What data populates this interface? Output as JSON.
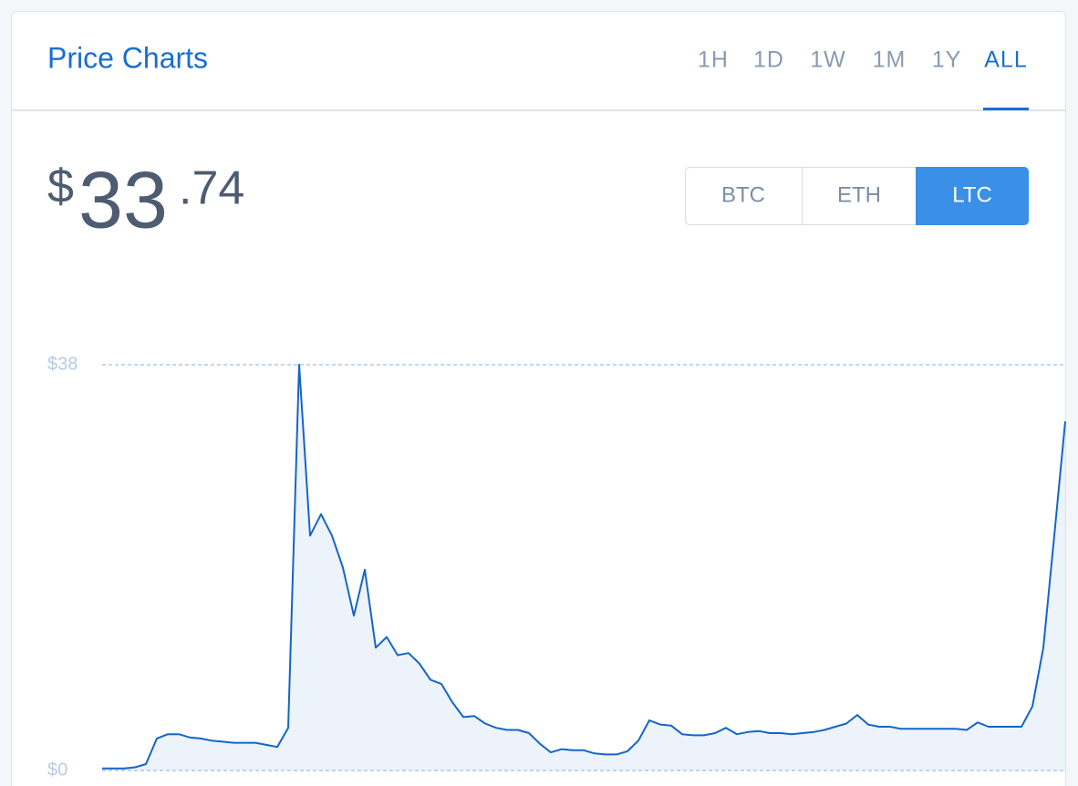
{
  "header": {
    "title": "Price Charts",
    "ranges": [
      "1H",
      "1D",
      "1W",
      "1M",
      "1Y",
      "ALL"
    ]
  },
  "price": {
    "symbol": "$",
    "whole": "33",
    "fraction": ".74"
  },
  "currencies": [
    "BTC",
    "ETH",
    "LTC"
  ],
  "chart_data": {
    "type": "area",
    "color": "#1565c8",
    "fill": "#edf3fb",
    "grid": true,
    "ylim": [
      0,
      38
    ],
    "yticks": [
      {
        "value": 38,
        "label": "$38"
      },
      {
        "value": 0,
        "label": "$0"
      }
    ],
    "values": [
      0.2,
      0.2,
      0.2,
      0.3,
      0.6,
      3.0,
      3.4,
      3.4,
      3.1,
      3.0,
      2.8,
      2.7,
      2.6,
      2.6,
      2.6,
      2.4,
      2.2,
      4.0,
      38,
      22,
      24,
      22,
      19,
      14.5,
      18.8,
      11.5,
      12.5,
      10.8,
      11,
      10,
      8.5,
      8.1,
      6.4,
      5,
      5.1,
      4.4,
      4,
      3.8,
      3.8,
      3.5,
      2.5,
      1.7,
      2,
      1.9,
      1.9,
      1.6,
      1.5,
      1.5,
      1.8,
      2.8,
      4.7,
      4.3,
      4.2,
      3.4,
      3.3,
      3.3,
      3.5,
      4.0,
      3.4,
      3.6,
      3.7,
      3.5,
      3.5,
      3.4,
      3.5,
      3.6,
      3.8,
      4.1,
      4.4,
      5.2,
      4.3,
      4.1,
      4.1,
      3.9,
      3.9,
      3.9,
      3.9,
      3.9,
      3.9,
      3.8,
      4.5,
      4.1,
      4.1,
      4.1,
      4.1,
      6,
      11.5,
      22,
      32.7
    ]
  }
}
